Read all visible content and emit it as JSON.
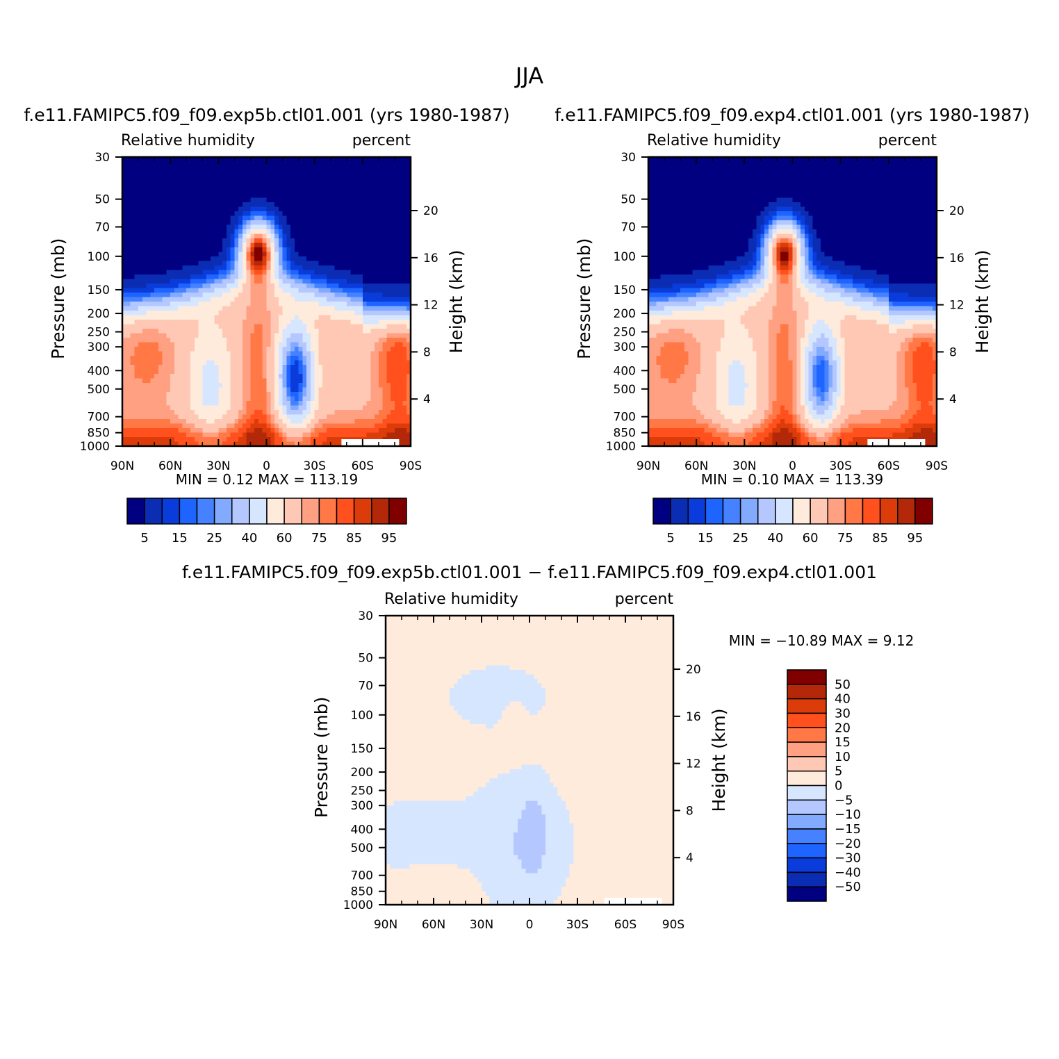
{
  "figure_title": "JJA",
  "colors": {
    "rh": [
      "#000080",
      "#0a2db4",
      "#0a3cdc",
      "#1e64ff",
      "#4682ff",
      "#82aaff",
      "#b4c8ff",
      "#d7e6ff",
      "#ffebdc",
      "#ffc8b4",
      "#ffa082",
      "#ff7846",
      "#ff501e",
      "#dc3c0a",
      "#b4280a",
      "#800000"
    ],
    "diff": [
      "#000080",
      "#0a2db4",
      "#0a3cdc",
      "#1e64ff",
      "#4682ff",
      "#82aaff",
      "#b4c8ff",
      "#d7e6ff",
      "#ffebdc",
      "#ffc8b4",
      "#ffa082",
      "#ff7846",
      "#ff501e",
      "#dc3c0a",
      "#b4280a",
      "#800000"
    ]
  },
  "chart_data": [
    {
      "type": "heatmap",
      "title": "f.e11.FAMIPC5.f09_f09.exp5b.ctl01.001 (yrs 1980-1987)",
      "left_label": "Relative humidity",
      "right_label": "percent",
      "ylabel": "Pressure (mb)",
      "ylabel_right": "Height (km)",
      "x_ticks": [
        "90N",
        "60N",
        "30N",
        "0",
        "30S",
        "60S",
        "90S"
      ],
      "xlim": [
        90,
        -90
      ],
      "y_ticks": [
        "30",
        "50",
        "70",
        "100",
        "150",
        "200",
        "250",
        "300",
        "400",
        "500",
        "700",
        "850",
        "1000"
      ],
      "y_tick_values": [
        30,
        50,
        70,
        100,
        150,
        200,
        250,
        300,
        400,
        500,
        700,
        850,
        1000
      ],
      "ylim": [
        30,
        1000
      ],
      "height_ticks": [
        "20",
        "16",
        "12",
        "8",
        "4"
      ],
      "height_tick_values": [
        20,
        16,
        12,
        8,
        4
      ],
      "stats": "MIN =    0.12   MAX = 113.19",
      "colorbar_labels": [
        "5",
        "15",
        "25",
        "40",
        "60",
        "75",
        "85",
        "95"
      ],
      "field": "rh",
      "peak_blue": 12,
      "peak_red_top": 93
    },
    {
      "type": "heatmap",
      "title": "f.e11.FAMIPC5.f09_f09.exp4.ctl01.001 (yrs 1980-1987)",
      "left_label": "Relative humidity",
      "right_label": "percent",
      "ylabel": "Pressure (mb)",
      "ylabel_right": "Height (km)",
      "x_ticks": [
        "90N",
        "60N",
        "30N",
        "0",
        "30S",
        "60S",
        "90S"
      ],
      "xlim": [
        90,
        -90
      ],
      "y_ticks": [
        "30",
        "50",
        "70",
        "100",
        "150",
        "200",
        "250",
        "300",
        "400",
        "500",
        "700",
        "850",
        "1000"
      ],
      "y_tick_values": [
        30,
        50,
        70,
        100,
        150,
        200,
        250,
        300,
        400,
        500,
        700,
        850,
        1000
      ],
      "ylim": [
        30,
        1000
      ],
      "height_ticks": [
        "20",
        "16",
        "12",
        "8",
        "4"
      ],
      "height_tick_values": [
        20,
        16,
        12,
        8,
        4
      ],
      "stats": "MIN =    0.10   MAX = 113.39",
      "colorbar_labels": [
        "5",
        "15",
        "25",
        "40",
        "60",
        "75",
        "85",
        "95"
      ],
      "field": "rh",
      "peak_blue": 18,
      "peak_red_top": 90
    },
    {
      "type": "heatmap",
      "title": "f.e11.FAMIPC5.f09_f09.exp5b.ctl01.001 − f.e11.FAMIPC5.f09_f09.exp4.ctl01.001",
      "left_label": "Relative humidity",
      "right_label": "percent",
      "ylabel": "Pressure (mb)",
      "ylabel_right": "Height (km)",
      "x_ticks": [
        "90N",
        "60N",
        "30N",
        "0",
        "30S",
        "60S",
        "90S"
      ],
      "xlim": [
        90,
        -90
      ],
      "y_ticks": [
        "30",
        "50",
        "70",
        "100",
        "150",
        "200",
        "250",
        "300",
        "400",
        "500",
        "700",
        "850",
        "1000"
      ],
      "y_tick_values": [
        30,
        50,
        70,
        100,
        150,
        200,
        250,
        300,
        400,
        500,
        700,
        850,
        1000
      ],
      "ylim": [
        30,
        1000
      ],
      "height_ticks": [
        "20",
        "16",
        "12",
        "8",
        "4"
      ],
      "height_tick_values": [
        20,
        16,
        12,
        8,
        4
      ],
      "stats": "MIN = −10.89   MAX =    9.12",
      "colorbar_labels": [
        "50",
        "40",
        "30",
        "20",
        "15",
        "10",
        "5",
        "0",
        "−5",
        "−10",
        "−15",
        "−20",
        "−30",
        "−40",
        "−50"
      ],
      "field": "diff"
    }
  ]
}
